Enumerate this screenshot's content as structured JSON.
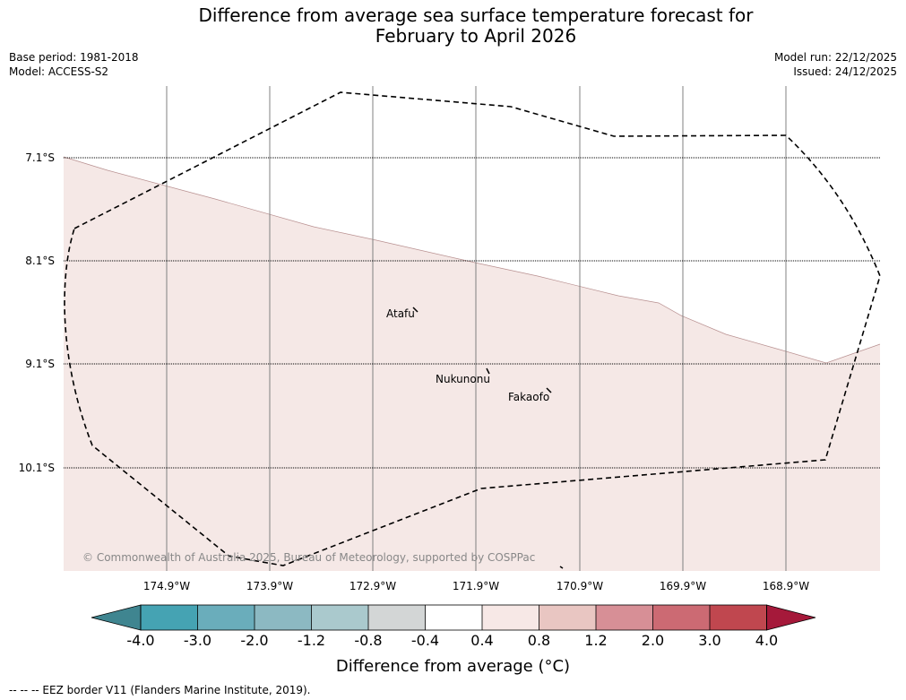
{
  "title": {
    "line1": "Difference from average sea surface temperature forecast for",
    "line2": "February to April 2026"
  },
  "meta": {
    "base_period": "Base period: 1981-2018",
    "model": "Model: ACCESS-S2",
    "model_run": "Model run: 22/12/2025",
    "issued": "Issued: 24/12/2025"
  },
  "map": {
    "latitudes": [
      "7.1°S",
      "8.1°S",
      "9.1°S",
      "10.1°S"
    ],
    "longitudes": [
      "174.9°W",
      "173.9°W",
      "172.9°W",
      "171.9°W",
      "170.9°W",
      "169.9°W",
      "168.9°W"
    ],
    "places": {
      "atafu": "Atafu",
      "nukunonu": "Nukunonu",
      "fakaofo": "Fakaofo"
    },
    "fill_colors": {
      "anomaly_0_4_to_0_8": "#f5e8e6",
      "land": "#000000"
    },
    "copyright": "© Commonwealth of Australia 2025, Bureau of Meteorology, supported by COSPPac"
  },
  "colorbar": {
    "ticks": [
      "-4.0",
      "-3.0",
      "-2.0",
      "-1.2",
      "-0.8",
      "-0.4",
      "0.4",
      "0.8",
      "1.2",
      "2.0",
      "3.0",
      "4.0"
    ],
    "colors": [
      "#3f8590",
      "#45a3b3",
      "#6aadbb",
      "#8cb9c2",
      "#aac9cd",
      "#d3d6d6",
      "#ffffff",
      "#f7e8e6",
      "#e9c6c2",
      "#d78f96",
      "#cc6a73",
      "#c0474f",
      "#a5193a"
    ],
    "label": "Difference from average (°C)"
  },
  "footer": {
    "eez_note": "-- -- -- EEZ border V11 (Flanders Marine Institute, 2019)."
  }
}
